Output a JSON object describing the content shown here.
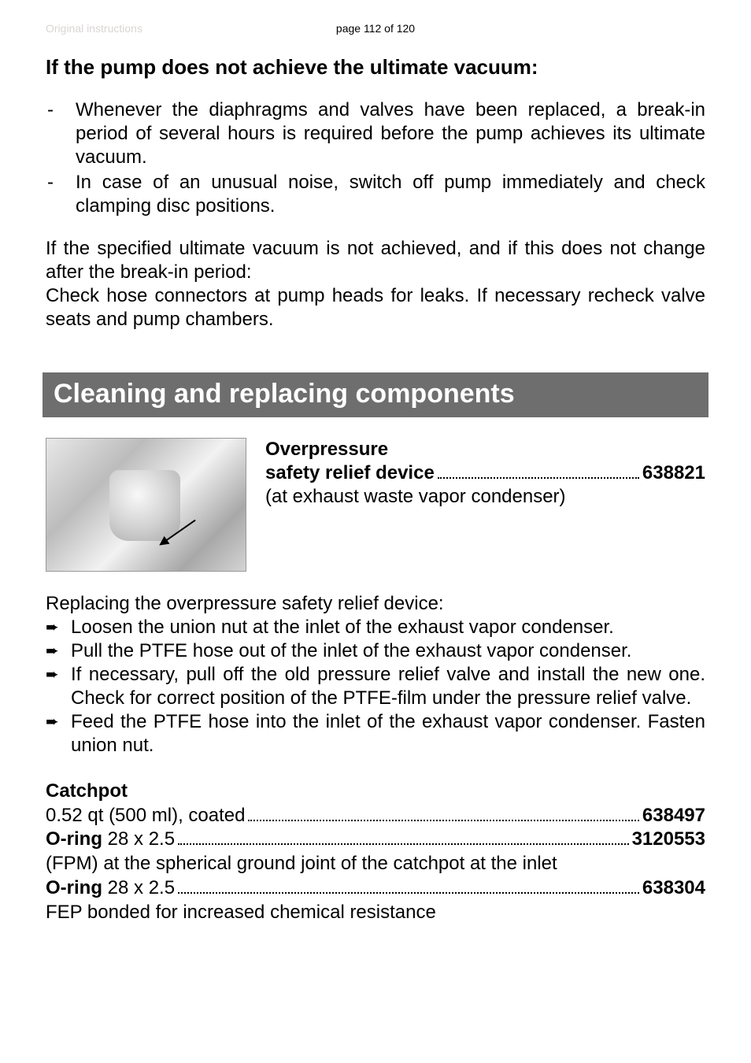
{
  "header": {
    "left": "Original instructions",
    "center": "page 112 of 120"
  },
  "h1": "If the pump does not achieve the ultimate vacuum:",
  "dash_items": [
    "Whenever the diaphragms and valves have been replaced, a break-in period of several hours is required before the pump achieves its ultimate vacuum.",
    "In case of an unusual noise, switch off pump immediately and check clamping disc positions."
  ],
  "para1": "If the specified ultimate vacuum is not achieved, and if this does not change after the break-in period:",
  "para2": "Check hose connectors at pump heads for leaks. If necessary recheck valve seats and pump chambers.",
  "banner": "Cleaning and replacing components",
  "overpressure": {
    "line1": "Overpressure",
    "line2_label": "safety relief device",
    "line2_code": "638821",
    "line3": "(at exhaust waste vapor condenser)"
  },
  "replacing_title": "Replacing the overpressure safety relief device:",
  "arrow_items": [
    "Loosen the union nut at the inlet of the exhaust vapor condenser.",
    "Pull the PTFE hose out of the inlet of the exhaust vapor condenser.",
    "If necessary, pull off the old pressure relief valve and install the new one. Check for correct position of the PTFE-film under the pressure relief valve.",
    "Feed the PTFE hose into the inlet of the exhaust vapor condenser. Fasten union nut."
  ],
  "catchpot": {
    "title": "Catchpot",
    "r1_label": "0.52 qt (500 ml), coated",
    "r1_code": "638497",
    "r2_label_bold": "O-ring",
    "r2_label_rest": " 28 x 2.5",
    "r2_code": "3120553",
    "r2_sub": "(FPM) at the spherical ground joint of the catchpot at the inlet",
    "r3_label_bold": "O-ring",
    "r3_label_rest": " 28 x 2.5",
    "r3_code": "638304",
    "r3_sub": "FEP bonded for increased chemical resistance"
  }
}
